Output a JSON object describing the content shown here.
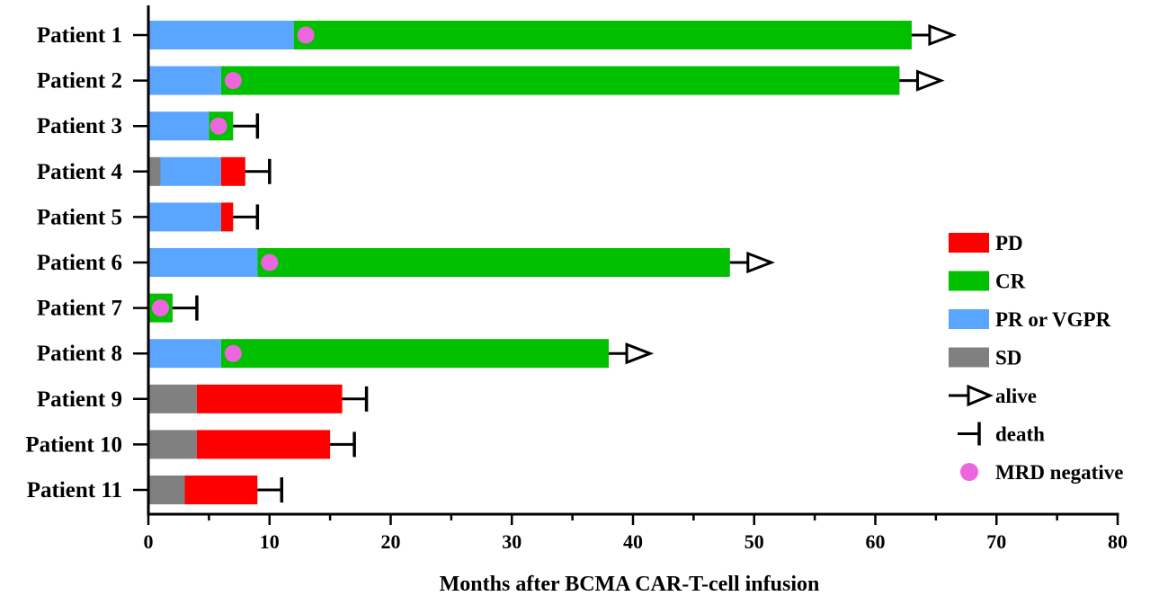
{
  "chart_data": {
    "type": "bar",
    "orientation": "horizontal",
    "stacked": true,
    "xlabel": "Months after BCMA CAR-T-cell infusion",
    "xlim": [
      0,
      80
    ],
    "xticks": [
      0,
      10,
      20,
      30,
      40,
      50,
      60,
      70,
      80
    ],
    "colors": {
      "PD": "#ff0000",
      "CR": "#00c000",
      "PR or VGPR": "#5aa5ff",
      "SD": "#808080",
      "MRD negative": "#ee66dd",
      "marker": "#000000"
    },
    "legend": {
      "position": "right",
      "items": [
        {
          "label": "PD",
          "kind": "PD"
        },
        {
          "label": "CR",
          "kind": "CR"
        },
        {
          "label": "PR or VGPR",
          "kind": "PR or VGPR"
        },
        {
          "label": "SD",
          "kind": "SD"
        },
        {
          "label": "alive",
          "kind": "alive"
        },
        {
          "label": "death",
          "kind": "death"
        },
        {
          "label": "MRD negative",
          "kind": "MRD negative"
        }
      ]
    },
    "patients": [
      {
        "label": "Patient 1",
        "segments": [
          {
            "status": "PR or VGPR",
            "start": 0,
            "end": 12
          },
          {
            "status": "CR",
            "start": 12,
            "end": 63
          }
        ],
        "outcome": "alive",
        "mrd_negative": 13
      },
      {
        "label": "Patient 2",
        "segments": [
          {
            "status": "PR or VGPR",
            "start": 0,
            "end": 6
          },
          {
            "status": "CR",
            "start": 6,
            "end": 62
          }
        ],
        "outcome": "alive",
        "mrd_negative": 7
      },
      {
        "label": "Patient 3",
        "segments": [
          {
            "status": "PR or VGPR",
            "start": 0,
            "end": 5
          },
          {
            "status": "CR",
            "start": 5,
            "end": 7
          }
        ],
        "outcome": "death",
        "mrd_negative": 5.8
      },
      {
        "label": "Patient 4",
        "segments": [
          {
            "status": "SD",
            "start": 0,
            "end": 1
          },
          {
            "status": "PR or VGPR",
            "start": 1,
            "end": 6
          },
          {
            "status": "PD",
            "start": 6,
            "end": 8
          }
        ],
        "outcome": "death",
        "mrd_negative": null
      },
      {
        "label": "Patient 5",
        "segments": [
          {
            "status": "PR or VGPR",
            "start": 0,
            "end": 6
          },
          {
            "status": "PD",
            "start": 6,
            "end": 7
          }
        ],
        "outcome": "death",
        "mrd_negative": null
      },
      {
        "label": "Patient 6",
        "segments": [
          {
            "status": "PR or VGPR",
            "start": 0,
            "end": 9
          },
          {
            "status": "CR",
            "start": 9,
            "end": 48
          }
        ],
        "outcome": "alive",
        "mrd_negative": 10
      },
      {
        "label": "Patient 7",
        "segments": [
          {
            "status": "CR",
            "start": 0,
            "end": 2
          }
        ],
        "outcome": "death",
        "mrd_negative": 1
      },
      {
        "label": "Patient 8",
        "segments": [
          {
            "status": "PR or VGPR",
            "start": 0,
            "end": 6
          },
          {
            "status": "CR",
            "start": 6,
            "end": 38
          }
        ],
        "outcome": "alive",
        "mrd_negative": 7
      },
      {
        "label": "Patient 9",
        "segments": [
          {
            "status": "SD",
            "start": 0,
            "end": 4
          },
          {
            "status": "PD",
            "start": 4,
            "end": 16
          }
        ],
        "outcome": "death",
        "mrd_negative": null
      },
      {
        "label": "Patient 10",
        "segments": [
          {
            "status": "SD",
            "start": 0,
            "end": 4
          },
          {
            "status": "PD",
            "start": 4,
            "end": 15
          }
        ],
        "outcome": "death",
        "mrd_negative": null
      },
      {
        "label": "Patient 11",
        "segments": [
          {
            "status": "SD",
            "start": 0,
            "end": 3
          },
          {
            "status": "PD",
            "start": 3,
            "end": 9
          }
        ],
        "outcome": "death",
        "mrd_negative": null
      }
    ]
  }
}
